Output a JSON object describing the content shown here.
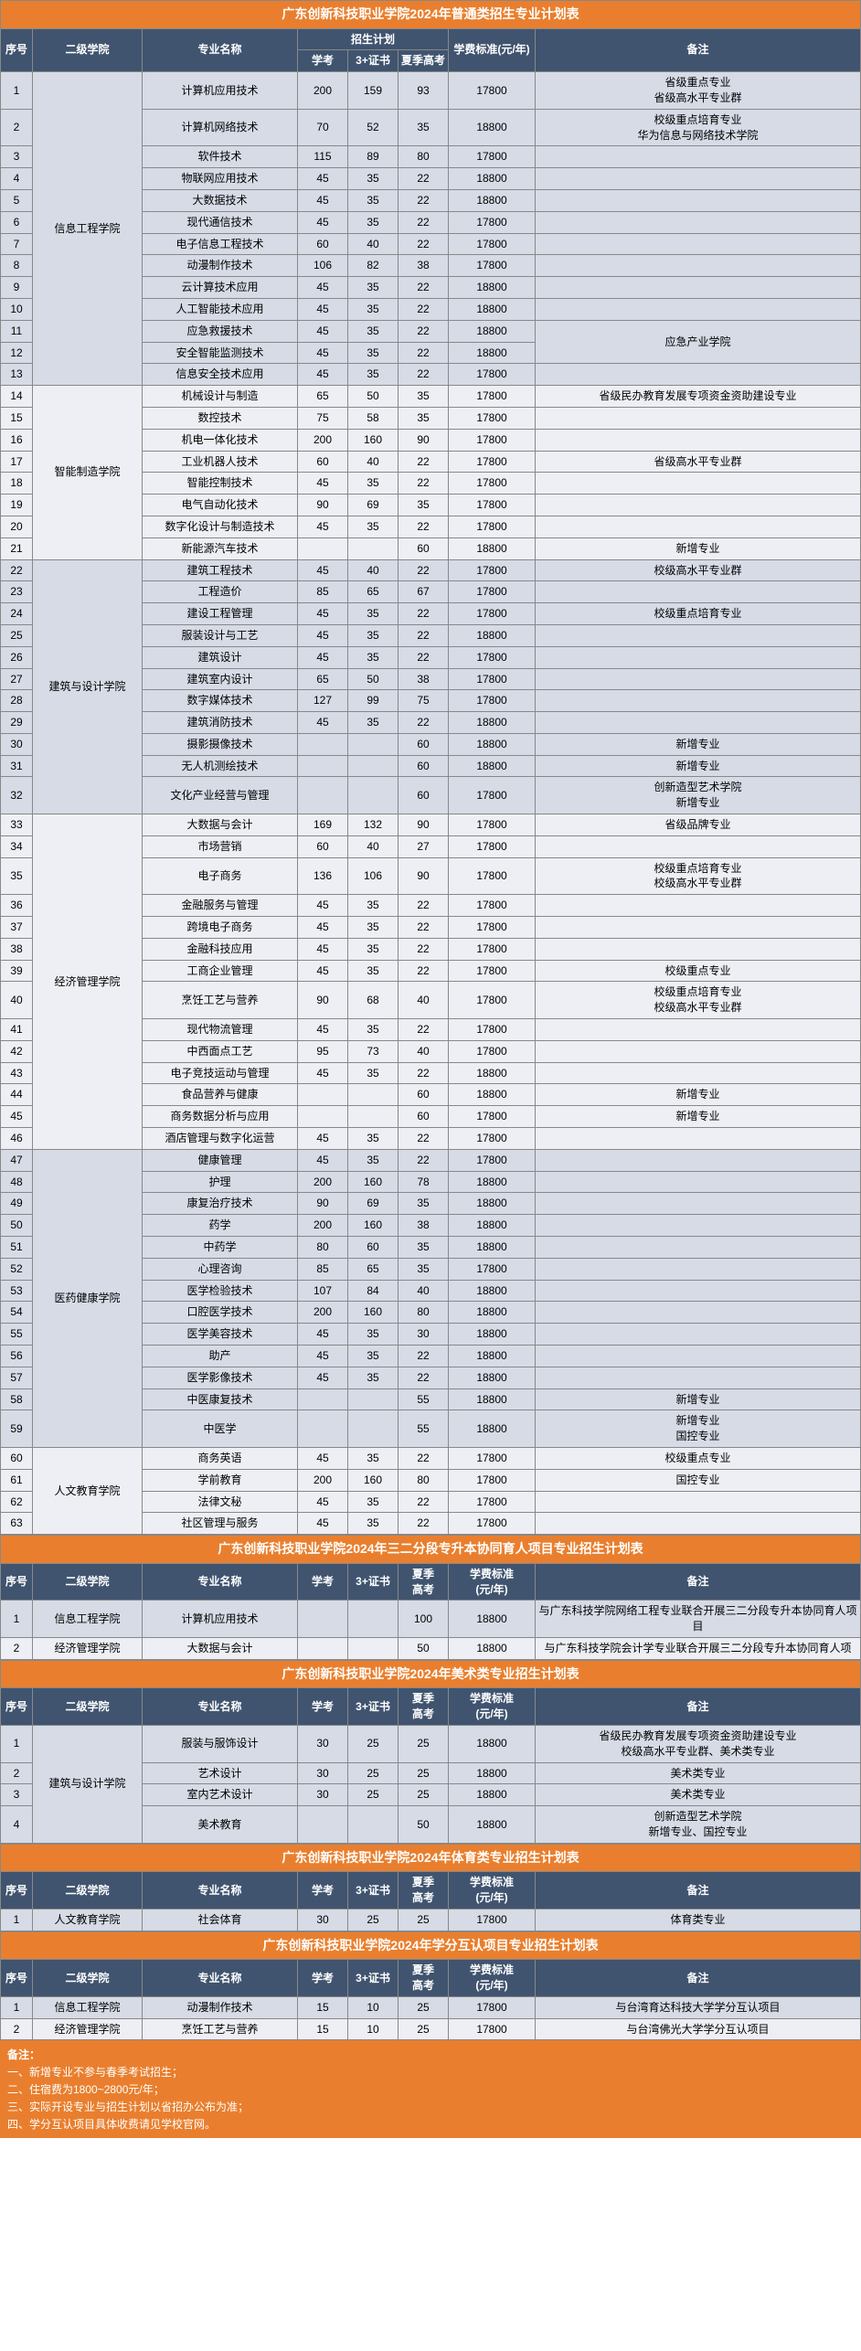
{
  "tables": [
    {
      "title": "广东创新科技职业学院2024年普通类招生专业计划表",
      "headers": {
        "seq": "序号",
        "dept": "二级学院",
        "major": "专业名称",
        "plan": "招生计划",
        "p1": "学考",
        "p2": "3+证书",
        "p3": "夏季高考",
        "fee": "学费标准(元/年)",
        "remark": "备注"
      },
      "rows": [
        {
          "n": "1",
          "d": "信息工程学院",
          "ds": 13,
          "m": "计算机应用技术",
          "a": "200",
          "b": "159",
          "c": "93",
          "f": "17800",
          "r": "省级重点专业\n省级高水平专业群",
          "rs": 1
        },
        {
          "n": "2",
          "m": "计算机网络技术",
          "a": "70",
          "b": "52",
          "c": "35",
          "f": "18800",
          "r": "校级重点培育专业\n华为信息与网络技术学院",
          "rs": 1
        },
        {
          "n": "3",
          "m": "软件技术",
          "a": "115",
          "b": "89",
          "c": "80",
          "f": "17800",
          "r": "",
          "rs": 1
        },
        {
          "n": "4",
          "m": "物联网应用技术",
          "a": "45",
          "b": "35",
          "c": "22",
          "f": "18800",
          "r": "",
          "rs": 1
        },
        {
          "n": "5",
          "m": "大数据技术",
          "a": "45",
          "b": "35",
          "c": "22",
          "f": "18800",
          "r": "",
          "rs": 1
        },
        {
          "n": "6",
          "m": "现代通信技术",
          "a": "45",
          "b": "35",
          "c": "22",
          "f": "17800",
          "r": "",
          "rs": 1
        },
        {
          "n": "7",
          "m": "电子信息工程技术",
          "a": "60",
          "b": "40",
          "c": "22",
          "f": "17800",
          "r": "",
          "rs": 1
        },
        {
          "n": "8",
          "m": "动漫制作技术",
          "a": "106",
          "b": "82",
          "c": "38",
          "f": "17800",
          "r": "",
          "rs": 1
        },
        {
          "n": "9",
          "m": "云计算技术应用",
          "a": "45",
          "b": "35",
          "c": "22",
          "f": "18800",
          "r": "",
          "rs": 1
        },
        {
          "n": "10",
          "m": "人工智能技术应用",
          "a": "45",
          "b": "35",
          "c": "22",
          "f": "18800",
          "r": "",
          "rs": 1
        },
        {
          "n": "11",
          "m": "应急救援技术",
          "a": "45",
          "b": "35",
          "c": "22",
          "f": "18800",
          "r": "应急产业学院",
          "rs": 2
        },
        {
          "n": "12",
          "m": "安全智能监测技术",
          "a": "45",
          "b": "35",
          "c": "22",
          "f": "18800"
        },
        {
          "n": "13",
          "m": "信息安全技术应用",
          "a": "45",
          "b": "35",
          "c": "22",
          "f": "17800",
          "r": "",
          "rs": 1
        },
        {
          "n": "14",
          "d": "智能制造学院",
          "ds": 8,
          "m": "机械设计与制造",
          "a": "65",
          "b": "50",
          "c": "35",
          "f": "17800",
          "r": "省级民办教育发展专项资金资助建设专业",
          "rs": 1
        },
        {
          "n": "15",
          "m": "数控技术",
          "a": "75",
          "b": "58",
          "c": "35",
          "f": "17800",
          "r": "",
          "rs": 1
        },
        {
          "n": "16",
          "m": "机电一体化技术",
          "a": "200",
          "b": "160",
          "c": "90",
          "f": "17800",
          "r": "",
          "rs": 1
        },
        {
          "n": "17",
          "m": "工业机器人技术",
          "a": "60",
          "b": "40",
          "c": "22",
          "f": "17800",
          "r": "省级高水平专业群",
          "rs": 1
        },
        {
          "n": "18",
          "m": "智能控制技术",
          "a": "45",
          "b": "35",
          "c": "22",
          "f": "17800",
          "r": "",
          "rs": 1
        },
        {
          "n": "19",
          "m": "电气自动化技术",
          "a": "90",
          "b": "69",
          "c": "35",
          "f": "17800",
          "r": "",
          "rs": 1
        },
        {
          "n": "20",
          "m": "数字化设计与制造技术",
          "a": "45",
          "b": "35",
          "c": "22",
          "f": "17800",
          "r": "",
          "rs": 1
        },
        {
          "n": "21",
          "m": "新能源汽车技术",
          "a": "",
          "b": "",
          "c": "60",
          "f": "18800",
          "r": "新增专业",
          "rs": 1
        },
        {
          "n": "22",
          "d": "建筑与设计学院",
          "ds": 11,
          "m": "建筑工程技术",
          "a": "45",
          "b": "40",
          "c": "22",
          "f": "17800",
          "r": "校级高水平专业群",
          "rs": 1
        },
        {
          "n": "23",
          "m": "工程造价",
          "a": "85",
          "b": "65",
          "c": "67",
          "f": "17800",
          "r": "",
          "rs": 1
        },
        {
          "n": "24",
          "m": "建设工程管理",
          "a": "45",
          "b": "35",
          "c": "22",
          "f": "17800",
          "r": "校级重点培育专业",
          "rs": 1
        },
        {
          "n": "25",
          "m": "服装设计与工艺",
          "a": "45",
          "b": "35",
          "c": "22",
          "f": "18800",
          "r": "",
          "rs": 1
        },
        {
          "n": "26",
          "m": "建筑设计",
          "a": "45",
          "b": "35",
          "c": "22",
          "f": "17800",
          "r": "",
          "rs": 1
        },
        {
          "n": "27",
          "m": "建筑室内设计",
          "a": "65",
          "b": "50",
          "c": "38",
          "f": "17800",
          "r": "",
          "rs": 1
        },
        {
          "n": "28",
          "m": "数字媒体技术",
          "a": "127",
          "b": "99",
          "c": "75",
          "f": "17800",
          "r": "",
          "rs": 1
        },
        {
          "n": "29",
          "m": "建筑消防技术",
          "a": "45",
          "b": "35",
          "c": "22",
          "f": "18800",
          "r": "",
          "rs": 1
        },
        {
          "n": "30",
          "m": "摄影摄像技术",
          "a": "",
          "b": "",
          "c": "60",
          "f": "18800",
          "r": "新增专业",
          "rs": 1
        },
        {
          "n": "31",
          "m": "无人机测绘技术",
          "a": "",
          "b": "",
          "c": "60",
          "f": "18800",
          "r": "新增专业",
          "rs": 1
        },
        {
          "n": "32",
          "m": "文化产业经营与管理",
          "a": "",
          "b": "",
          "c": "60",
          "f": "17800",
          "r": "创新造型艺术学院\n新增专业",
          "rs": 1
        },
        {
          "n": "33",
          "d": "经济管理学院",
          "ds": 14,
          "m": "大数据与会计",
          "a": "169",
          "b": "132",
          "c": "90",
          "f": "17800",
          "r": "省级品牌专业",
          "rs": 1
        },
        {
          "n": "34",
          "m": "市场营销",
          "a": "60",
          "b": "40",
          "c": "27",
          "f": "17800",
          "r": "",
          "rs": 1
        },
        {
          "n": "35",
          "m": "电子商务",
          "a": "136",
          "b": "106",
          "c": "90",
          "f": "17800",
          "r": "校级重点培育专业\n校级高水平专业群",
          "rs": 1
        },
        {
          "n": "36",
          "m": "金融服务与管理",
          "a": "45",
          "b": "35",
          "c": "22",
          "f": "17800",
          "r": "",
          "rs": 1
        },
        {
          "n": "37",
          "m": "跨境电子商务",
          "a": "45",
          "b": "35",
          "c": "22",
          "f": "17800",
          "r": "",
          "rs": 1
        },
        {
          "n": "38",
          "m": "金融科技应用",
          "a": "45",
          "b": "35",
          "c": "22",
          "f": "17800",
          "r": "",
          "rs": 1
        },
        {
          "n": "39",
          "m": "工商企业管理",
          "a": "45",
          "b": "35",
          "c": "22",
          "f": "17800",
          "r": "校级重点专业",
          "rs": 1
        },
        {
          "n": "40",
          "m": "烹饪工艺与营养",
          "a": "90",
          "b": "68",
          "c": "40",
          "f": "17800",
          "r": "校级重点培育专业\n校级高水平专业群",
          "rs": 1
        },
        {
          "n": "41",
          "m": "现代物流管理",
          "a": "45",
          "b": "35",
          "c": "22",
          "f": "17800",
          "r": "",
          "rs": 1
        },
        {
          "n": "42",
          "m": "中西面点工艺",
          "a": "95",
          "b": "73",
          "c": "40",
          "f": "17800",
          "r": "",
          "rs": 1
        },
        {
          "n": "43",
          "m": "电子竞技运动与管理",
          "a": "45",
          "b": "35",
          "c": "22",
          "f": "18800",
          "r": "",
          "rs": 1
        },
        {
          "n": "44",
          "m": "食品营养与健康",
          "a": "",
          "b": "",
          "c": "60",
          "f": "18800",
          "r": "新增专业",
          "rs": 1
        },
        {
          "n": "45",
          "m": "商务数据分析与应用",
          "a": "",
          "b": "",
          "c": "60",
          "f": "17800",
          "r": "新增专业",
          "rs": 1
        },
        {
          "n": "46",
          "m": "酒店管理与数字化运营",
          "a": "45",
          "b": "35",
          "c": "22",
          "f": "17800",
          "r": "",
          "rs": 1
        },
        {
          "n": "47",
          "d": "医药健康学院",
          "ds": 13,
          "m": "健康管理",
          "a": "45",
          "b": "35",
          "c": "22",
          "f": "17800",
          "r": "",
          "rs": 1
        },
        {
          "n": "48",
          "m": "护理",
          "a": "200",
          "b": "160",
          "c": "78",
          "f": "18800",
          "r": "",
          "rs": 1
        },
        {
          "n": "49",
          "m": "康复治疗技术",
          "a": "90",
          "b": "69",
          "c": "35",
          "f": "18800",
          "r": "",
          "rs": 1
        },
        {
          "n": "50",
          "m": "药学",
          "a": "200",
          "b": "160",
          "c": "38",
          "f": "18800",
          "r": "",
          "rs": 1
        },
        {
          "n": "51",
          "m": "中药学",
          "a": "80",
          "b": "60",
          "c": "35",
          "f": "18800",
          "r": "",
          "rs": 1
        },
        {
          "n": "52",
          "m": "心理咨询",
          "a": "85",
          "b": "65",
          "c": "35",
          "f": "17800",
          "r": "",
          "rs": 1
        },
        {
          "n": "53",
          "m": "医学检验技术",
          "a": "107",
          "b": "84",
          "c": "40",
          "f": "18800",
          "r": "",
          "rs": 1
        },
        {
          "n": "54",
          "m": "口腔医学技术",
          "a": "200",
          "b": "160",
          "c": "80",
          "f": "18800",
          "r": "",
          "rs": 1
        },
        {
          "n": "55",
          "m": "医学美容技术",
          "a": "45",
          "b": "35",
          "c": "30",
          "f": "18800",
          "r": "",
          "rs": 1
        },
        {
          "n": "56",
          "m": "助产",
          "a": "45",
          "b": "35",
          "c": "22",
          "f": "18800",
          "r": "",
          "rs": 1
        },
        {
          "n": "57",
          "m": "医学影像技术",
          "a": "45",
          "b": "35",
          "c": "22",
          "f": "18800",
          "r": "",
          "rs": 1
        },
        {
          "n": "58",
          "m": "中医康复技术",
          "a": "",
          "b": "",
          "c": "55",
          "f": "18800",
          "r": "新增专业",
          "rs": 1
        },
        {
          "n": "59",
          "m": "中医学",
          "a": "",
          "b": "",
          "c": "55",
          "f": "18800",
          "r": "新增专业\n国控专业",
          "rs": 1
        },
        {
          "n": "60",
          "d": "人文教育学院",
          "ds": 4,
          "m": "商务英语",
          "a": "45",
          "b": "35",
          "c": "22",
          "f": "17800",
          "r": "校级重点专业",
          "rs": 1
        },
        {
          "n": "61",
          "m": "学前教育",
          "a": "200",
          "b": "160",
          "c": "80",
          "f": "17800",
          "r": "国控专业",
          "rs": 1
        },
        {
          "n": "62",
          "m": "法律文秘",
          "a": "45",
          "b": "35",
          "c": "22",
          "f": "17800",
          "r": "",
          "rs": 1
        },
        {
          "n": "63",
          "m": "社区管理与服务",
          "a": "45",
          "b": "35",
          "c": "22",
          "f": "17800",
          "r": "",
          "rs": 1
        }
      ]
    },
    {
      "title": "广东创新科技职业学院2024年三二分段专升本协同育人项目专业招生计划表",
      "headers": {
        "seq": "序号",
        "dept": "二级学院",
        "major": "专业名称",
        "p1": "学考",
        "p2": "3+证书",
        "p3": "夏季\n高考",
        "fee": "学费标准\n(元/年)",
        "remark": "备注"
      },
      "rows": [
        {
          "n": "1",
          "d": "信息工程学院",
          "ds": 1,
          "m": "计算机应用技术",
          "a": "",
          "b": "",
          "c": "100",
          "f": "18800",
          "r": "与广东科技学院网络工程专业联合开展三二分段专升本协同育人项目",
          "rs": 1
        },
        {
          "n": "2",
          "d": "经济管理学院",
          "ds": 1,
          "m": "大数据与会计",
          "a": "",
          "b": "",
          "c": "50",
          "f": "18800",
          "r": "与广东科技学院会计学专业联合开展三二分段专升本协同育人项",
          "rs": 1
        }
      ]
    },
    {
      "title": "广东创新科技职业学院2024年美术类专业招生计划表",
      "headers": {
        "seq": "序号",
        "dept": "二级学院",
        "major": "专业名称",
        "p1": "学考",
        "p2": "3+证书",
        "p3": "夏季\n高考",
        "fee": "学费标准\n(元/年)",
        "remark": "备注"
      },
      "rows": [
        {
          "n": "1",
          "d": "建筑与设计学院",
          "ds": 4,
          "m": "服装与服饰设计",
          "a": "30",
          "b": "25",
          "c": "25",
          "f": "18800",
          "r": "省级民办教育发展专项资金资助建设专业\n校级高水平专业群、美术类专业",
          "rs": 1
        },
        {
          "n": "2",
          "m": "艺术设计",
          "a": "30",
          "b": "25",
          "c": "25",
          "f": "18800",
          "r": "美术类专业",
          "rs": 1
        },
        {
          "n": "3",
          "m": "室内艺术设计",
          "a": "30",
          "b": "25",
          "c": "25",
          "f": "18800",
          "r": "美术类专业",
          "rs": 1
        },
        {
          "n": "4",
          "m": "美术教育",
          "a": "",
          "b": "",
          "c": "50",
          "f": "18800",
          "r": "创新造型艺术学院\n新增专业、国控专业",
          "rs": 1
        }
      ]
    },
    {
      "title": "广东创新科技职业学院2024年体育类专业招生计划表",
      "headers": {
        "seq": "序号",
        "dept": "二级学院",
        "major": "专业名称",
        "p1": "学考",
        "p2": "3+证书",
        "p3": "夏季\n高考",
        "fee": "学费标准\n(元/年)",
        "remark": "备注"
      },
      "rows": [
        {
          "n": "1",
          "d": "人文教育学院",
          "ds": 1,
          "m": "社会体育",
          "a": "30",
          "b": "25",
          "c": "25",
          "f": "17800",
          "r": "体育类专业",
          "rs": 1
        }
      ]
    },
    {
      "title": "广东创新科技职业学院2024年学分互认项目专业招生计划表",
      "headers": {
        "seq": "序号",
        "dept": "二级学院",
        "major": "专业名称",
        "p1": "学考",
        "p2": "3+证书",
        "p3": "夏季\n高考",
        "fee": "学费标准\n(元/年)",
        "remark": "备注"
      },
      "rows": [
        {
          "n": "1",
          "d": "信息工程学院",
          "ds": 1,
          "m": "动漫制作技术",
          "a": "15",
          "b": "10",
          "c": "25",
          "f": "17800",
          "r": "与台湾育达科技大学学分互认项目",
          "rs": 1
        },
        {
          "n": "2",
          "d": "经济管理学院",
          "ds": 1,
          "m": "烹饪工艺与营养",
          "a": "15",
          "b": "10",
          "c": "25",
          "f": "17800",
          "r": "与台湾佛光大学学分互认项目",
          "rs": 1
        }
      ]
    }
  ],
  "notes": {
    "title": "备注：",
    "lines": [
      "一、新增专业不参与春季考试招生；",
      "二、住宿费为1800~2800元/年；",
      "三、实际开设专业与招生计划以省招办公布为准；",
      "四、学分互认项目具体收费请见学校官网。"
    ]
  }
}
